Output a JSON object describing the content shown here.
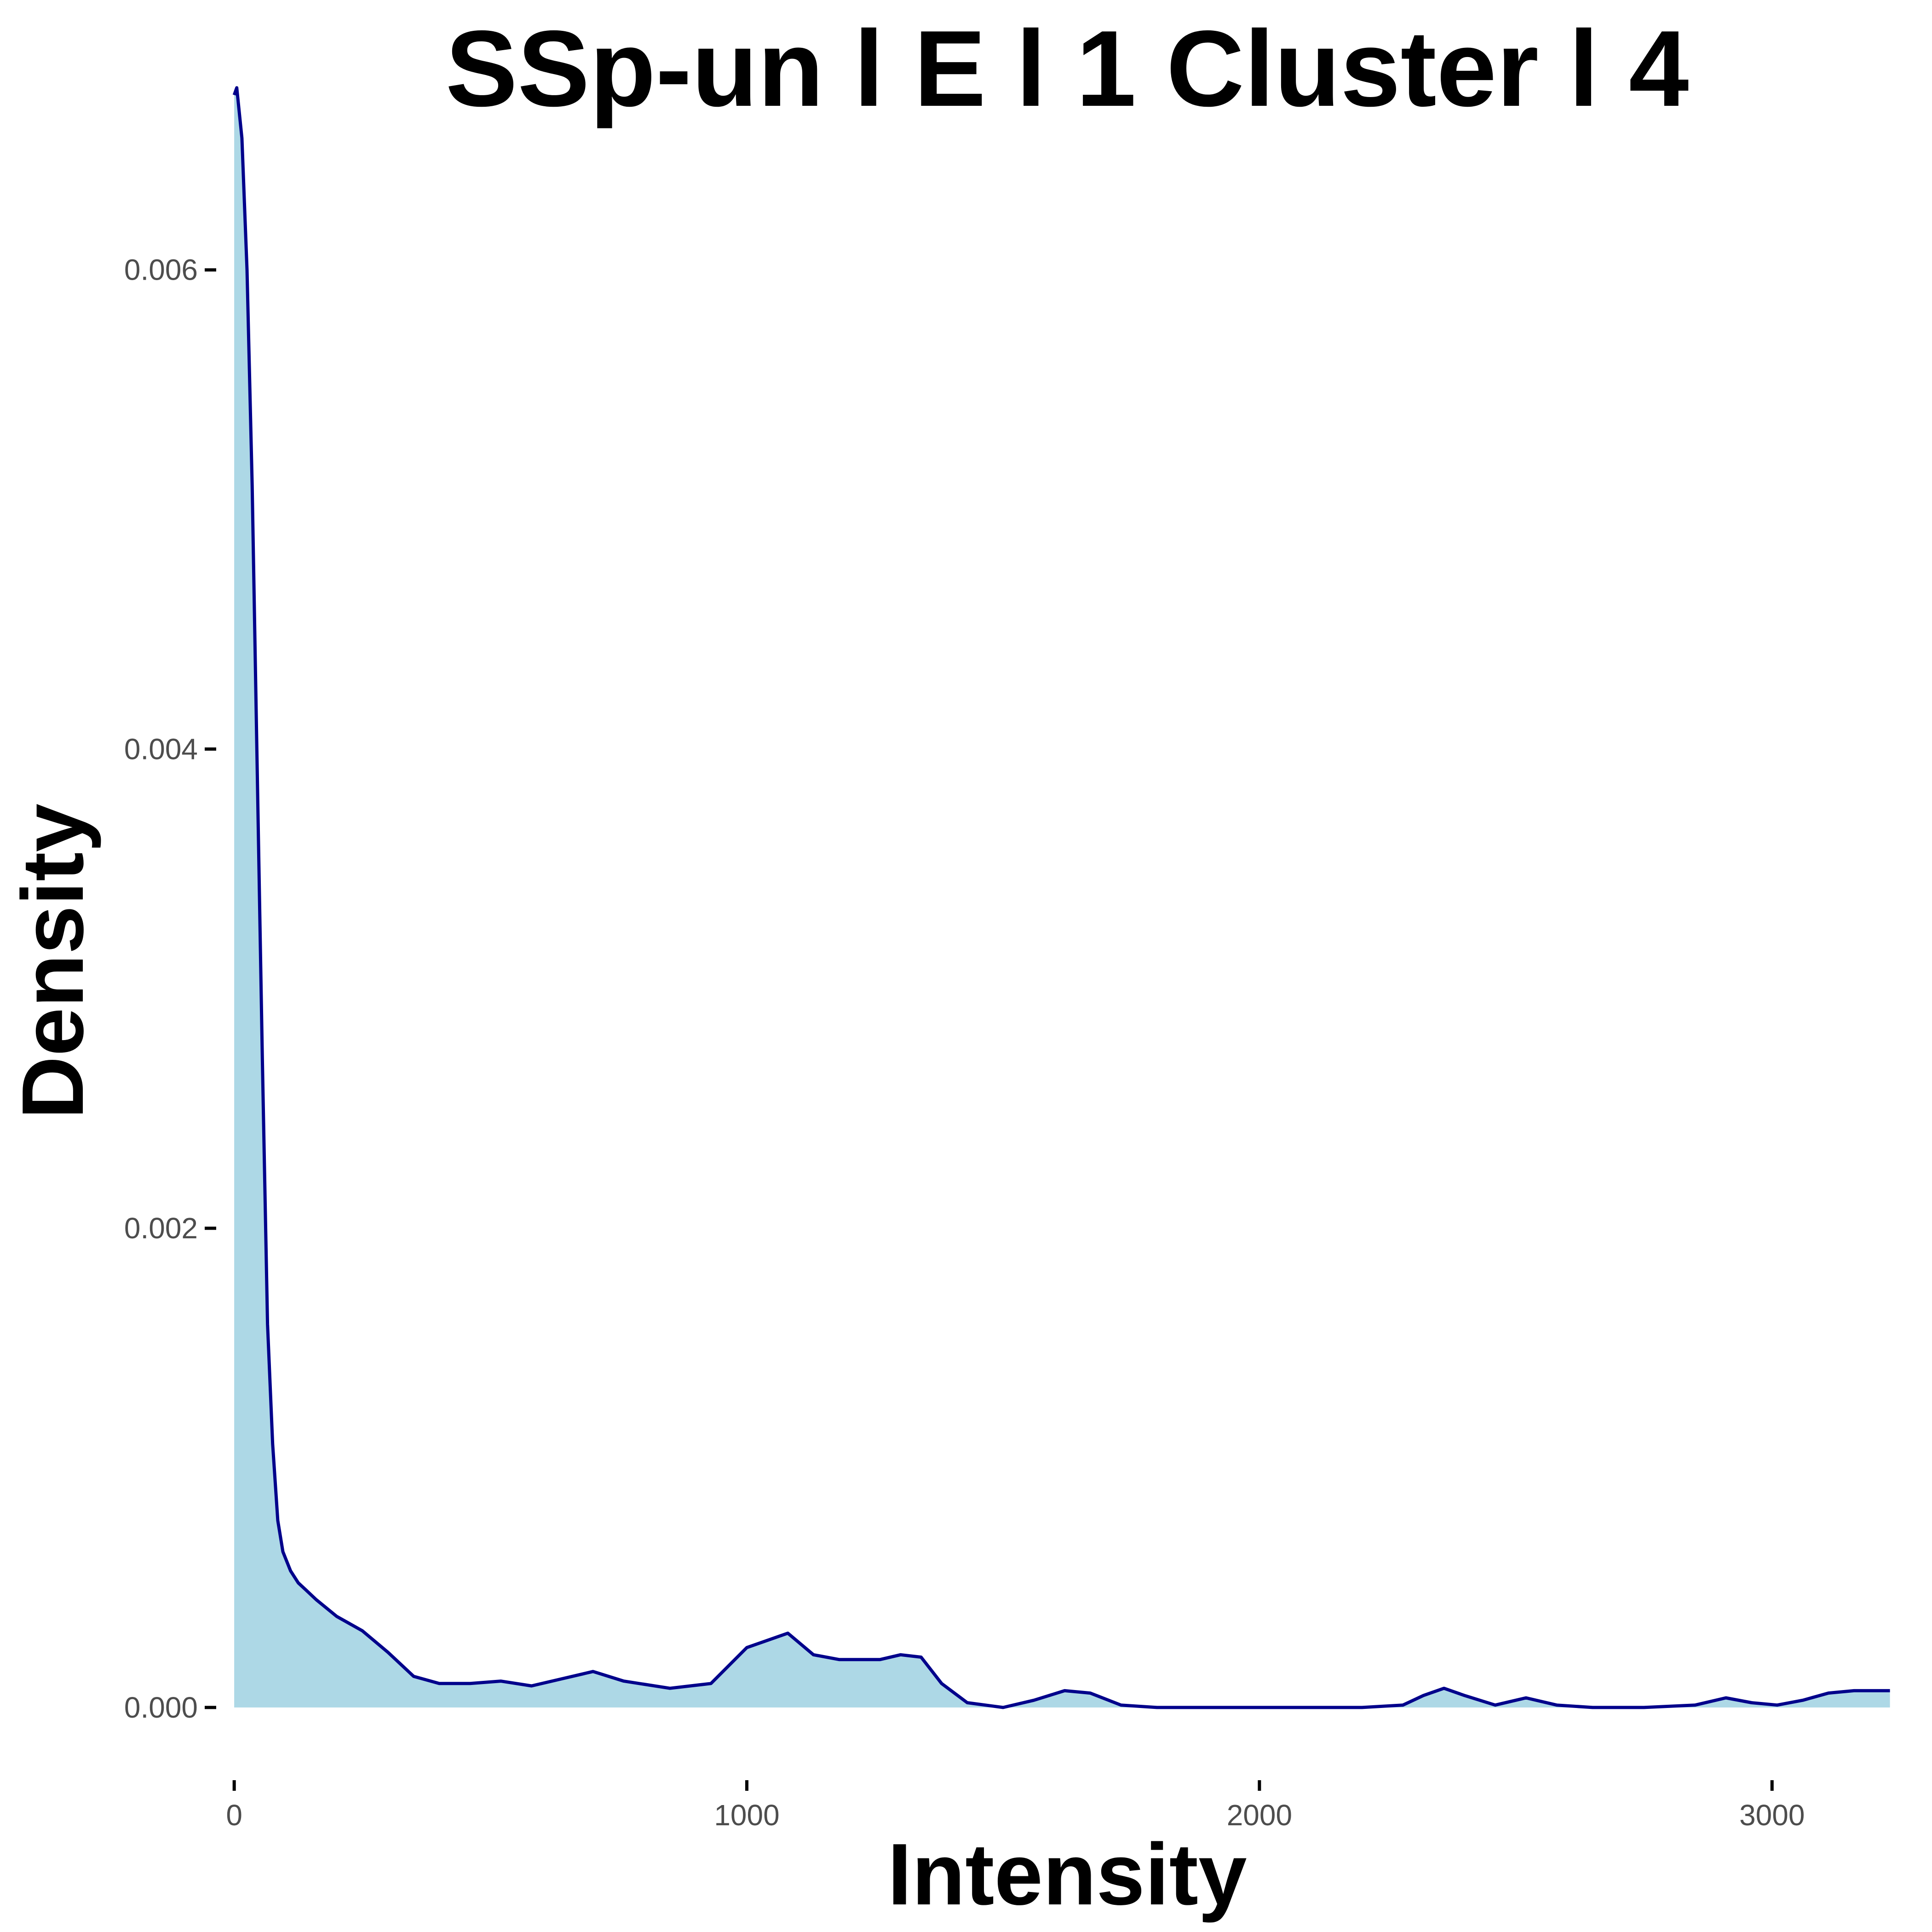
{
  "chart_data": {
    "type": "area",
    "title": "SSp-un l E l 1 Cluster l  4",
    "xlabel": "Intensity",
    "ylabel": "Density",
    "xlim": [
      -80,
      3330
    ],
    "ylim": [
      -0.00015,
      0.0068
    ],
    "x_ticks": [
      0,
      1000,
      2000,
      3000
    ],
    "x_tick_labels": [
      "0",
      "1000",
      "2000",
      "3000"
    ],
    "y_ticks": [
      0.0,
      0.002,
      0.004,
      0.006
    ],
    "y_tick_labels": [
      "0.000",
      "0.002",
      "0.004",
      "0.006"
    ],
    "grid": false,
    "fill_color": "#add8e6",
    "line_color": "#00008b",
    "series": [
      {
        "x": [
          0,
          5,
          15,
          25,
          35,
          45,
          55,
          65,
          75,
          85,
          95,
          110,
          125,
          140,
          160,
          200,
          250,
          300,
          350,
          400,
          460,
          520,
          580,
          640,
          700,
          760,
          850,
          930,
          1000,
          1080,
          1130,
          1180,
          1220,
          1260,
          1300,
          1340,
          1380,
          1430,
          1500,
          1560,
          1620,
          1670,
          1730,
          1800,
          1900,
          2000,
          2100,
          2200,
          2280,
          2320,
          2360,
          2400,
          2460,
          2520,
          2580,
          2650,
          2750,
          2850,
          2910,
          2960,
          3010,
          3060,
          3110,
          3160,
          3230
        ],
        "y": [
          0.00673,
          0.00676,
          0.00655,
          0.006,
          0.0051,
          0.0039,
          0.0027,
          0.0016,
          0.0011,
          0.00078,
          0.00065,
          0.00057,
          0.00052,
          0.00049,
          0.00045,
          0.00038,
          0.00032,
          0.00023,
          0.00013,
          0.0001,
          0.0001,
          0.00011,
          9e-05,
          0.00012,
          0.00015,
          0.00011,
          8e-05,
          0.0001,
          0.00025,
          0.00031,
          0.00022,
          0.0002,
          0.0002,
          0.0002,
          0.00022,
          0.00021,
          0.0001,
          2e-05,
          0.0,
          3e-05,
          7e-05,
          6e-05,
          1e-05,
          0.0,
          0.0,
          0.0,
          0.0,
          0.0,
          1e-05,
          5e-05,
          8e-05,
          5e-05,
          1e-05,
          4e-05,
          1e-05,
          0.0,
          0.0,
          1e-05,
          4e-05,
          2e-05,
          1e-05,
          3e-05,
          6e-05,
          7e-05,
          7e-05
        ]
      }
    ]
  }
}
